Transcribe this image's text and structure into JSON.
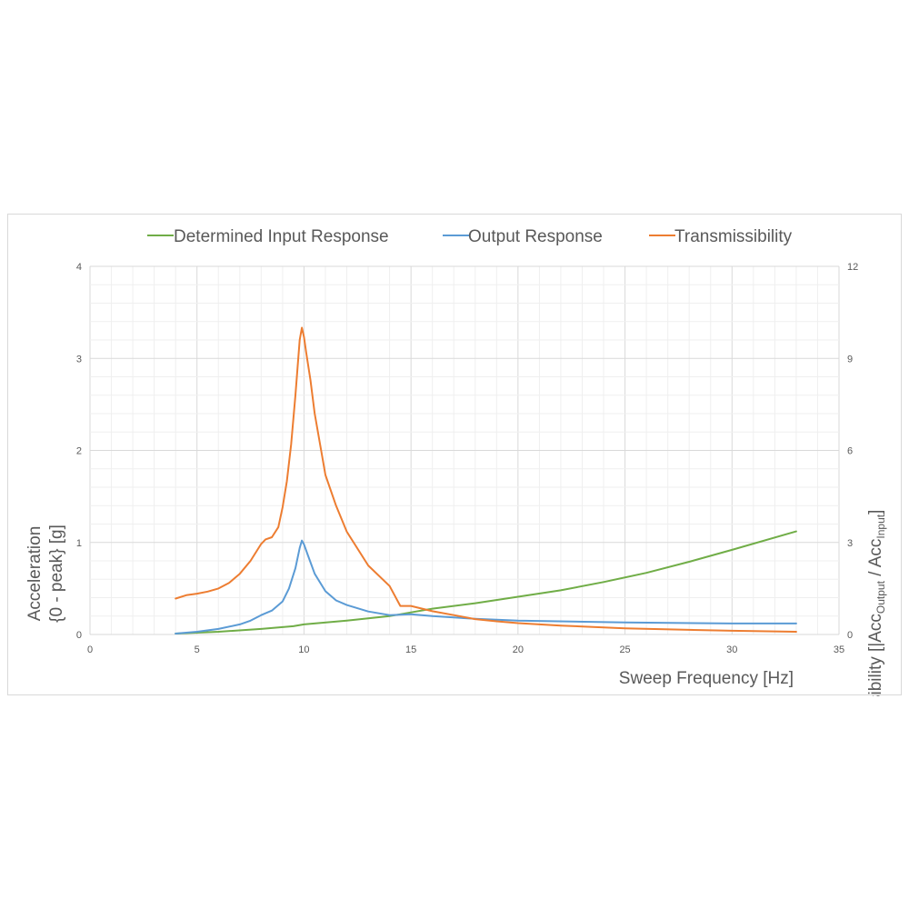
{
  "chart_data": {
    "type": "line",
    "xlabel": "Sweep Frequency [Hz]",
    "ylabel_line1": "Acceleration",
    "ylabel_line2": "{0 - peak} [g]",
    "y2label_parts": {
      "prefix": "Transmissibility [|Acc",
      "sub1": "Output",
      "middle": " / Acc",
      "sub2": "Input",
      "suffix": "]"
    },
    "xlim": [
      0,
      35
    ],
    "ylim": [
      0,
      4
    ],
    "y2lim": [
      0,
      12
    ],
    "x_ticks": [
      "0",
      "5",
      "10",
      "15",
      "20",
      "25",
      "30",
      "35"
    ],
    "y_ticks": [
      "0",
      "1",
      "2",
      "3",
      "4"
    ],
    "y2_ticks": [
      "0",
      "3",
      "6",
      "9",
      "12"
    ],
    "grid": true,
    "legend_position": "top",
    "series": [
      {
        "name": "Determined Input Response",
        "axis": "left",
        "color": "#70ad47",
        "x": [
          4,
          6,
          8,
          9.5,
          10,
          12,
          14,
          15,
          16,
          18,
          20,
          22,
          24,
          26,
          28,
          30,
          33
        ],
        "y": [
          0.01,
          0.03,
          0.06,
          0.09,
          0.11,
          0.15,
          0.2,
          0.24,
          0.28,
          0.34,
          0.41,
          0.48,
          0.57,
          0.67,
          0.79,
          0.92,
          1.12
        ]
      },
      {
        "name": "Output Response",
        "axis": "left",
        "color": "#5b9bd5",
        "x": [
          4,
          5,
          6,
          7,
          7.5,
          8,
          8.5,
          9,
          9.3,
          9.6,
          9.8,
          9.9,
          10,
          10.2,
          10.5,
          11,
          11.5,
          12,
          13,
          14,
          15,
          16,
          18,
          20,
          25,
          30,
          33
        ],
        "y": [
          0.01,
          0.03,
          0.06,
          0.11,
          0.15,
          0.21,
          0.26,
          0.36,
          0.5,
          0.72,
          0.94,
          1.02,
          0.98,
          0.85,
          0.66,
          0.47,
          0.37,
          0.32,
          0.25,
          0.21,
          0.22,
          0.2,
          0.17,
          0.15,
          0.13,
          0.12,
          0.12
        ]
      },
      {
        "name": "Transmissibility",
        "axis": "right",
        "color": "#ed7d31",
        "x": [
          4,
          4.5,
          5,
          5.5,
          6,
          6.5,
          7,
          7.5,
          8,
          8.2,
          8.5,
          8.8,
          9,
          9.2,
          9.4,
          9.6,
          9.8,
          9.9,
          10,
          10.1,
          10.3,
          10.5,
          10.8,
          11,
          11.5,
          12,
          13,
          14,
          14.5,
          15,
          16,
          17,
          18,
          19,
          20,
          22,
          25,
          28,
          30,
          33
        ],
        "y": [
          1.17,
          1.28,
          1.33,
          1.4,
          1.5,
          1.68,
          1.98,
          2.4,
          2.95,
          3.1,
          3.17,
          3.5,
          4.15,
          5.0,
          6.2,
          7.8,
          9.6,
          10.0,
          9.7,
          9.2,
          8.3,
          7.2,
          6.0,
          5.2,
          4.2,
          3.35,
          2.25,
          1.58,
          0.93,
          0.93,
          0.76,
          0.63,
          0.5,
          0.43,
          0.37,
          0.29,
          0.2,
          0.15,
          0.12,
          0.09
        ]
      }
    ]
  }
}
